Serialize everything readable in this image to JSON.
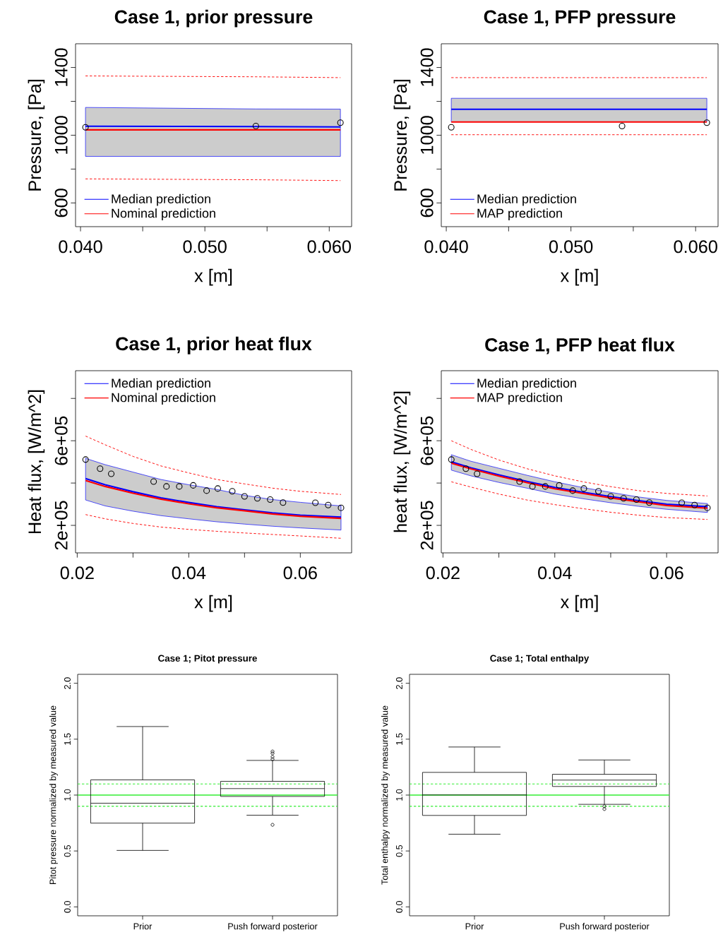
{
  "chart_data": [
    {
      "type": "line",
      "title": "Case 1, prior pressure",
      "xlabel": "x [m]",
      "ylabel": "Pressure, [Pa]",
      "legend": "bottom left",
      "grid": false,
      "x": [
        0.0404,
        0.0541,
        0.0609
      ],
      "xlim": [
        0.0396,
        0.0618
      ],
      "xticks": [
        {
          "value": 0.04,
          "label": "0.040"
        },
        {
          "value": 0.045,
          "label": null
        },
        {
          "value": 0.05,
          "label": "0.050"
        },
        {
          "value": 0.055,
          "label": null
        },
        {
          "value": 0.06,
          "label": "0.060"
        }
      ],
      "ylim": [
        460,
        1540
      ],
      "yticks": [
        600,
        {
          "value": 800,
          "label": null
        },
        1000,
        {
          "value": 1200,
          "label": null
        },
        1400
      ],
      "series": [
        {
          "color": "#ff0000",
          "line_style": "dashed",
          "values": [
            1350,
            1345,
            1340
          ]
        },
        {
          "color": "#ff0000",
          "line_style": "dashed",
          "values": [
            742,
            737,
            732
          ]
        },
        {
          "name": "Median prediction",
          "color": "#0000ff",
          "values": [
            1053,
            1051,
            1049
          ],
          "lower": [
            875,
            875,
            875
          ],
          "upper": [
            1164,
            1155,
            1154
          ]
        },
        {
          "name": "Nominal prediction",
          "color": "#ff0000",
          "values": [
            1032,
            1032,
            1032
          ]
        },
        {
          "type": "scatter",
          "marker": "circle",
          "color": "#000000",
          "x": [
            0.0404,
            0.0541,
            0.0609
          ],
          "values": [
            1047,
            1054,
            1074
          ]
        }
      ]
    },
    {
      "type": "line",
      "title": "Case 1, PFP pressure",
      "xlabel": "x [m]",
      "ylabel": "Pressure, [Pa]",
      "legend": "bottom left",
      "grid": false,
      "x": [
        0.0404,
        0.0541,
        0.0609
      ],
      "xlim": [
        0.0396,
        0.0618
      ],
      "xticks": [
        {
          "value": 0.04,
          "label": "0.040"
        },
        {
          "value": 0.045,
          "label": null
        },
        {
          "value": 0.05,
          "label": "0.050"
        },
        {
          "value": 0.055,
          "label": null
        },
        {
          "value": 0.06,
          "label": "0.060"
        }
      ],
      "ylim": [
        460,
        1540
      ],
      "yticks": [
        600,
        {
          "value": 800,
          "label": null
        },
        1000,
        {
          "value": 1200,
          "label": null
        },
        1400
      ],
      "series": [
        {
          "color": "#ff0000",
          "line_style": "dashed",
          "values": [
            1340,
            1340,
            1340
          ]
        },
        {
          "color": "#ff0000",
          "line_style": "dashed",
          "values": [
            1003,
            1003,
            1003
          ]
        },
        {
          "name": "Median prediction",
          "color": "#0000ff",
          "values": [
            1153,
            1153,
            1153
          ],
          "lower": [
            1079,
            1079,
            1079
          ],
          "upper": [
            1218,
            1218,
            1218
          ]
        },
        {
          "name": "MAP prediction",
          "color": "#ff0000",
          "values": [
            1078,
            1078,
            1078
          ]
        },
        {
          "type": "scatter",
          "marker": "circle",
          "color": "#000000",
          "x": [
            0.0404,
            0.0541,
            0.0609
          ],
          "values": [
            1047,
            1054,
            1074
          ]
        }
      ]
    },
    {
      "type": "line",
      "title": "Case 1, prior heat flux",
      "xlabel": "x [m]",
      "ylabel": "Heat flux, [W/m^2]",
      "legend": "top left",
      "grid": false,
      "x": [
        0.0215,
        0.025,
        0.03,
        0.035,
        0.04,
        0.045,
        0.05,
        0.055,
        0.06,
        0.0673
      ],
      "xlim": [
        0.0197,
        0.0692
      ],
      "xticks": [
        {
          "value": 0.02,
          "label": "0.02"
        },
        {
          "value": 0.03,
          "label": null
        },
        {
          "value": 0.04,
          "label": "0.04"
        },
        {
          "value": 0.05,
          "label": null
        },
        {
          "value": 0.06,
          "label": "0.06"
        }
      ],
      "ylim": [
        70000,
        931000
      ],
      "yticks": [
        {
          "value": 200000,
          "label": "2e+05"
        },
        {
          "value": 400000,
          "label": null
        },
        {
          "value": 600000,
          "label": "6e+05"
        },
        {
          "value": 800000,
          "label": null
        }
      ],
      "series": [
        {
          "color": "#ff0000",
          "line_style": "dashed",
          "values": [
            622000,
            581000,
            526000,
            481000,
            448000,
            417000,
            396000,
            376000,
            361000,
            346000
          ]
        },
        {
          "color": "#ff0000",
          "line_style": "dashed",
          "values": [
            251000,
            231000,
            209000,
            192000,
            181000,
            172000,
            164000,
            157000,
            150000,
            139000
          ]
        },
        {
          "name": "Median prediction",
          "color": "#0000ff",
          "values": [
            421000,
            392000,
            359000,
            330000,
            308000,
            288000,
            273000,
            259000,
            248000,
            239000
          ],
          "lower": [
            320000,
            292000,
            267000,
            246000,
            231000,
            217000,
            206000,
            196000,
            188000,
            178000
          ],
          "upper": [
            517000,
            487000,
            452000,
            417000,
            392000,
            370000,
            342000,
            322000,
            309000,
            292000
          ]
        },
        {
          "name": "Nominal prediction",
          "color": "#ff0000",
          "values": [
            412000,
            384000,
            352000,
            324000,
            302000,
            283000,
            269000,
            254000,
            243000,
            233000
          ]
        },
        {
          "type": "scatter",
          "marker": "circle",
          "color": "#000000",
          "x": [
            0.0215,
            0.0241,
            0.0261,
            0.0337,
            0.036,
            0.0383,
            0.0408,
            0.0432,
            0.0452,
            0.0478,
            0.05,
            0.0523,
            0.0546,
            0.0569,
            0.0627,
            0.065,
            0.0673
          ],
          "values": [
            511000,
            468000,
            444000,
            407000,
            384000,
            384000,
            389000,
            364000,
            374000,
            361000,
            337000,
            328000,
            322000,
            308000,
            307000,
            296000,
            283000
          ]
        }
      ]
    },
    {
      "type": "line",
      "title": "Case 1, PFP heat flux",
      "xlabel": "x [m]",
      "ylabel": "heat flux, [W/m^2]",
      "legend": "top left",
      "grid": false,
      "x": [
        0.0215,
        0.025,
        0.03,
        0.035,
        0.04,
        0.045,
        0.05,
        0.055,
        0.06,
        0.0673
      ],
      "xlim": [
        0.0197,
        0.0692
      ],
      "xticks": [
        {
          "value": 0.02,
          "label": "0.02"
        },
        {
          "value": 0.03,
          "label": null
        },
        {
          "value": 0.04,
          "label": "0.04"
        },
        {
          "value": 0.05,
          "label": null
        },
        {
          "value": 0.06,
          "label": "0.06"
        }
      ],
      "ylim": [
        70000,
        931000
      ],
      "yticks": [
        {
          "value": 200000,
          "label": "2e+05"
        },
        {
          "value": 400000,
          "label": null
        },
        {
          "value": 600000,
          "label": "6e+05"
        },
        {
          "value": 800000,
          "label": null
        }
      ],
      "series": [
        {
          "color": "#ff0000",
          "line_style": "dashed",
          "values": [
            600000,
            559000,
            509000,
            468000,
            434000,
            406000,
            383000,
            364000,
            351000,
            339000
          ]
        },
        {
          "color": "#ff0000",
          "line_style": "dashed",
          "values": [
            406000,
            381000,
            348000,
            320000,
            298000,
            279000,
            262000,
            248000,
            237000,
            228000
          ]
        },
        {
          "name": "Median prediction",
          "color": "#0000ff",
          "values": [
            500000,
            472000,
            439000,
            408000,
            379000,
            357000,
            336000,
            317000,
            300000,
            288000
          ],
          "lower": [
            461000,
            434000,
            403000,
            376000,
            348000,
            326000,
            307000,
            290000,
            276000,
            261000
          ],
          "upper": [
            534000,
            503000,
            470000,
            437000,
            406000,
            379000,
            356000,
            334000,
            318000,
            303000
          ]
        },
        {
          "name": "MAP prediction",
          "color": "#ff0000",
          "values": [
            494000,
            467000,
            433000,
            402000,
            373000,
            351000,
            330000,
            311000,
            294000,
            281000
          ]
        },
        {
          "type": "scatter",
          "marker": "circle",
          "color": "#000000",
          "x": [
            0.0215,
            0.0241,
            0.0261,
            0.0337,
            0.036,
            0.0383,
            0.0408,
            0.0432,
            0.0452,
            0.0478,
            0.05,
            0.0523,
            0.0546,
            0.0569,
            0.0627,
            0.065,
            0.0673
          ],
          "values": [
            511000,
            468000,
            444000,
            407000,
            384000,
            384000,
            389000,
            364000,
            374000,
            361000,
            337000,
            328000,
            322000,
            308000,
            307000,
            296000,
            283000
          ]
        }
      ]
    },
    {
      "type": "box",
      "title": "Case 1; Pitot pressure",
      "ylabel": "Pitot pressure normalized by measured value",
      "grid": false,
      "categories": [
        "Prior",
        "Push forward posterior"
      ],
      "ylim": [
        -0.08,
        2.08
      ],
      "yticks": [
        {
          "value": 0,
          "label": "0.0"
        },
        {
          "value": 0.5,
          "label": "0.5"
        },
        {
          "value": 1,
          "label": "1.0"
        },
        {
          "value": 1.5,
          "label": "1.5"
        },
        {
          "value": 2,
          "label": "2.0"
        }
      ],
      "boxes": [
        {
          "low": 0.505,
          "q1": 0.749,
          "median": 0.927,
          "q3": 1.136,
          "high": 1.613
        },
        {
          "low": 0.82,
          "q1": 0.988,
          "median": 1.058,
          "q3": 1.123,
          "high": 1.31,
          "outliers": [
            0.734,
            1.321,
            1.342,
            1.373,
            1.39
          ]
        }
      ],
      "ref_lines": [
        {
          "axis": "y",
          "value": 1,
          "color": "#33ee33",
          "line_style": "solid"
        },
        {
          "axis": "y",
          "value": 0.9,
          "color": "#33ee33",
          "line_style": "dashed"
        },
        {
          "axis": "y",
          "value": 1.1,
          "color": "#33ee33",
          "line_style": "dashed"
        }
      ]
    },
    {
      "type": "box",
      "title": "Case 1; Total enthalpy",
      "ylabel": "Total enthalpy normalized by measured value",
      "grid": false,
      "categories": [
        "Prior",
        "Push forward posterior"
      ],
      "ylim": [
        -0.08,
        2.08
      ],
      "yticks": [
        {
          "value": 0,
          "label": "0.0"
        },
        {
          "value": 0.5,
          "label": "0.5"
        },
        {
          "value": 1,
          "label": "1.0"
        },
        {
          "value": 1.5,
          "label": "1.5"
        },
        {
          "value": 2,
          "label": "2.0"
        }
      ],
      "boxes": [
        {
          "low": 0.65,
          "q1": 0.818,
          "median": 1.001,
          "q3": 1.203,
          "high": 1.43
        },
        {
          "low": 0.917,
          "q1": 1.077,
          "median": 1.134,
          "q3": 1.186,
          "high": 1.314,
          "outliers": [
            0.9,
            0.875
          ]
        }
      ],
      "ref_lines": [
        {
          "axis": "y",
          "value": 1,
          "color": "#33ee33",
          "line_style": "solid"
        },
        {
          "axis": "y",
          "value": 0.9,
          "color": "#33ee33",
          "line_style": "dashed"
        },
        {
          "axis": "y",
          "value": 1.1,
          "color": "#33ee33",
          "line_style": "dashed"
        }
      ]
    }
  ]
}
